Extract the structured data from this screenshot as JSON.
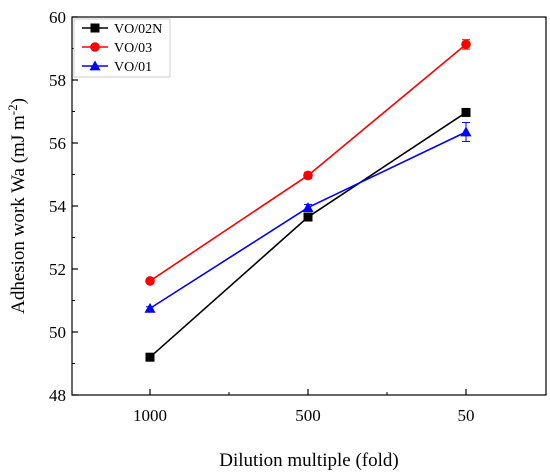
{
  "chart_data": {
    "type": "line",
    "categories": [
      "1000",
      "500",
      "50"
    ],
    "xlabel": "Dilution multiple (fold)",
    "ylabel_main": "Adhesion work Wa (mJ m",
    "ylabel_sup": "-2",
    "ylabel_close": ")",
    "ylim": [
      48,
      60
    ],
    "yticks": [
      "48",
      "50",
      "52",
      "54",
      "56",
      "58",
      "60"
    ],
    "legend_position": "top-left",
    "series": [
      {
        "name": "VO/02N",
        "color": "#000000",
        "marker": "square",
        "values": [
          49.2,
          53.65,
          56.97
        ],
        "errors": [
          0.05,
          0.1,
          0.08
        ]
      },
      {
        "name": "VO/03",
        "color": "#ff0000",
        "marker": "circle",
        "values": [
          51.62,
          54.97,
          59.13
        ],
        "errors": [
          0.05,
          0.1,
          0.15
        ]
      },
      {
        "name": "VO/01",
        "color": "#0000ff",
        "marker": "triangle",
        "values": [
          50.75,
          53.95,
          56.35
        ],
        "errors": [
          0.05,
          0.1,
          0.3
        ]
      }
    ]
  }
}
